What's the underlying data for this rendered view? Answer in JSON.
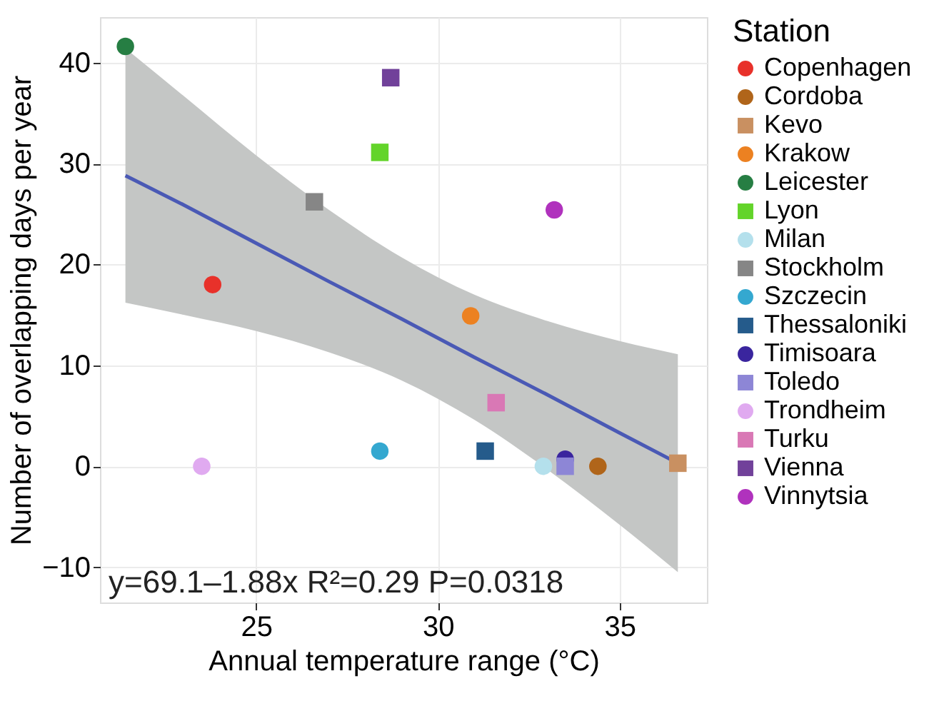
{
  "chart_data": {
    "type": "scatter",
    "xlabel": "Annual temperature range (°C)",
    "ylabel": "Number of overlapping days per year",
    "legend_title": "Station",
    "xlim": [
      20.7,
      37.4
    ],
    "xticks": [
      25,
      30,
      35
    ],
    "ylim": [
      -13.5,
      44.5
    ],
    "yticks": [
      -10,
      0,
      10,
      20,
      30,
      40
    ],
    "grid": true,
    "legend": "right",
    "series": [
      {
        "name": "Copenhagen",
        "color": "#e8312a",
        "marker": "circle",
        "x": [
          23.8
        ],
        "values": [
          18.0
        ]
      },
      {
        "name": "Cordoba",
        "color": "#b0651a",
        "marker": "circle",
        "x": [
          34.4
        ],
        "values": [
          0
        ]
      },
      {
        "name": "Kevo",
        "color": "#c99061",
        "marker": "square",
        "x": [
          36.6
        ],
        "values": [
          0.3
        ]
      },
      {
        "name": "Krakow",
        "color": "#ec8121",
        "marker": "circle",
        "x": [
          30.9
        ],
        "values": [
          14.9
        ]
      },
      {
        "name": "Leicester",
        "color": "#267e43",
        "marker": "circle",
        "x": [
          21.4
        ],
        "values": [
          41.6
        ]
      },
      {
        "name": "Lyon",
        "color": "#63d42a",
        "marker": "square",
        "x": [
          28.4
        ],
        "values": [
          31.1
        ]
      },
      {
        "name": "Milan",
        "color": "#b4e0ec",
        "marker": "circle",
        "x": [
          32.9
        ],
        "values": [
          0
        ]
      },
      {
        "name": "Stockholm",
        "color": "#868686",
        "marker": "square",
        "x": [
          26.6
        ],
        "values": [
          26.2
        ]
      },
      {
        "name": "Szczecin",
        "color": "#34a8d0",
        "marker": "circle",
        "x": [
          28.4
        ],
        "values": [
          1.5
        ]
      },
      {
        "name": "Thessaloniki",
        "color": "#255b8b",
        "marker": "square",
        "x": [
          31.3
        ],
        "values": [
          1.5
        ]
      },
      {
        "name": "Timisoara",
        "color": "#3a259e",
        "marker": "circle",
        "x": [
          33.5
        ],
        "values": [
          0.7
        ]
      },
      {
        "name": "Toledo",
        "color": "#8d86d6",
        "marker": "square",
        "x": [
          33.5
        ],
        "values": [
          0
        ]
      },
      {
        "name": "Trondheim",
        "color": "#e0aaf0",
        "marker": "circle",
        "x": [
          23.5
        ],
        "values": [
          0
        ]
      },
      {
        "name": "Turku",
        "color": "#d978b5",
        "marker": "square",
        "x": [
          31.6
        ],
        "values": [
          6.3
        ]
      },
      {
        "name": "Vienna",
        "color": "#71419a",
        "marker": "square",
        "x": [
          28.7
        ],
        "values": [
          38.5
        ]
      },
      {
        "name": "Vinnytsia",
        "color": "#b032bd",
        "marker": "circle",
        "x": [
          33.2
        ],
        "values": [
          25.4
        ]
      },
      {
        "type": "line",
        "color": "#4a59b5",
        "line_style": "solid",
        "x": [
          21.4,
          23,
          25,
          27,
          29,
          31,
          33,
          35,
          36.6
        ],
        "values": [
          28.8,
          25.9,
          22.1,
          18.3,
          14.6,
          10.8,
          7.1,
          3.3,
          0.3
        ],
        "lower": [
          16.2,
          15.0,
          13.4,
          11.3,
          8.5,
          4.6,
          -0.3,
          -5.8,
          -10.5
        ],
        "upper": [
          41.4,
          36.7,
          30.8,
          25.4,
          20.7,
          17.0,
          14.4,
          12.4,
          11.1
        ]
      }
    ],
    "annotations": [
      "y=69.1–1.88x  R²=0.29  P=0.0318"
    ]
  }
}
